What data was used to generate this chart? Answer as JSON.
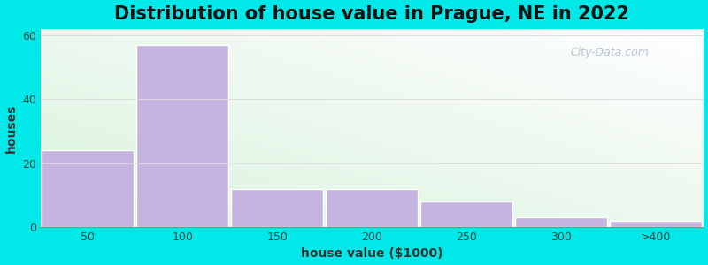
{
  "title": "Distribution of house value in Prague, NE in 2022",
  "xlabel": "house value ($1000)",
  "ylabel": "houses",
  "categories": [
    "50",
    "100",
    "150",
    "200",
    "250",
    "300",
    ">400"
  ],
  "values": [
    24,
    57,
    12,
    12,
    8,
    3,
    2
  ],
  "bar_color": "#c5b3e0",
  "bar_edgecolor": "#ffffff",
  "background_outer": "#00e8e8",
  "ylim": [
    0,
    62
  ],
  "yticks": [
    0,
    20,
    40,
    60
  ],
  "title_fontsize": 15,
  "axis_label_fontsize": 10,
  "tick_fontsize": 9,
  "watermark_text": "City-Data.com",
  "watermark_color": "#aabbcc",
  "grid_color": "#dddddd",
  "bar_width": 0.97
}
